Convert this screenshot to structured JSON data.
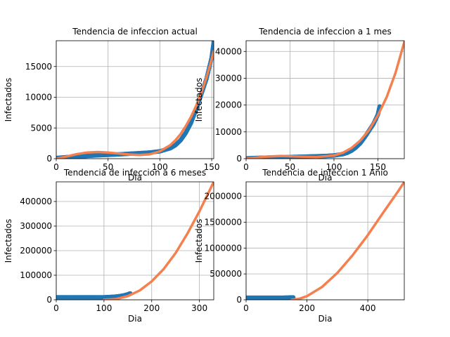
{
  "chart_data": [
    {
      "type": "scatter",
      "title": "Tendencia de infeccion actual",
      "xlabel": "Dia",
      "ylabel": "Infectados",
      "xlim": [
        0,
        152
      ],
      "ylim": [
        0,
        19200
      ],
      "xticks": [
        0,
        50,
        100,
        150
      ],
      "yticks": [
        0,
        5000,
        10000,
        15000
      ],
      "grid": true,
      "series": [
        {
          "kind": "scatter",
          "color": "#1f77b4",
          "x": [
            0,
            10,
            20,
            30,
            40,
            50,
            60,
            70,
            80,
            90,
            100,
            110,
            115,
            120,
            125,
            130,
            135,
            140,
            145,
            150,
            152
          ],
          "y": [
            100,
            250,
            350,
            450,
            550,
            620,
            700,
            800,
            900,
            1000,
            1200,
            1700,
            2200,
            3000,
            4200,
            5800,
            8000,
            10500,
            13000,
            16500,
            19000
          ]
        },
        {
          "kind": "line",
          "color": "#f5804f",
          "x": [
            0,
            10,
            20,
            30,
            40,
            50,
            60,
            70,
            80,
            90,
            100,
            110,
            115,
            120,
            125,
            130,
            135,
            140,
            145,
            150,
            152
          ],
          "y": [
            0,
            350,
            750,
            1000,
            1080,
            1000,
            850,
            680,
            600,
            700,
            1200,
            2200,
            3000,
            4000,
            5300,
            6800,
            8600,
            10700,
            13200,
            16200,
            17500
          ]
        }
      ]
    },
    {
      "type": "scatter",
      "title": "Tendencia de infeccion a 1 mes",
      "xlabel": "Dia",
      "ylabel": "Infectados",
      "xlim": [
        0,
        180
      ],
      "ylim": [
        0,
        44000
      ],
      "xticks": [
        0,
        50,
        100,
        150
      ],
      "yticks": [
        0,
        10000,
        20000,
        30000,
        40000
      ],
      "grid": true,
      "series": [
        {
          "kind": "scatter",
          "color": "#1f77b4",
          "x": [
            0,
            10,
            20,
            30,
            40,
            50,
            60,
            70,
            80,
            90,
            100,
            110,
            115,
            120,
            125,
            130,
            135,
            140,
            145,
            150,
            152
          ],
          "y": [
            100,
            250,
            350,
            450,
            550,
            620,
            700,
            800,
            900,
            1000,
            1200,
            1700,
            2200,
            3000,
            4200,
            5800,
            8000,
            10500,
            13000,
            16500,
            19500
          ]
        },
        {
          "kind": "line",
          "color": "#f5804f",
          "x": [
            0,
            20,
            40,
            60,
            80,
            100,
            110,
            120,
            130,
            140,
            150,
            160,
            170,
            180
          ],
          "y": [
            0,
            700,
            1000,
            800,
            600,
            1200,
            2200,
            4000,
            6800,
            10700,
            16200,
            23000,
            32000,
            43500
          ]
        }
      ]
    },
    {
      "type": "scatter",
      "title": "Tendencia de infeccion a 6 meses",
      "xlabel": "Dia",
      "ylabel": "Infectados",
      "xlim": [
        0,
        330
      ],
      "ylim": [
        0,
        480000
      ],
      "xticks": [
        0,
        100,
        200,
        300
      ],
      "yticks": [
        0,
        100000,
        200000,
        300000,
        400000
      ],
      "grid": true,
      "series": [
        {
          "kind": "scatter",
          "color": "#1f77b4",
          "x": [
            0,
            20,
            40,
            60,
            80,
            100,
            110,
            120,
            130,
            140,
            150,
            155
          ],
          "y": [
            10000,
            10000,
            10000,
            10000,
            10000,
            10000,
            11000,
            12000,
            14000,
            17000,
            22000,
            26000
          ]
        },
        {
          "kind": "line",
          "color": "#f5804f",
          "x": [
            100,
            125,
            150,
            175,
            200,
            225,
            250,
            275,
            300,
            330
          ],
          "y": [
            0,
            3000,
            15000,
            38000,
            75000,
            125000,
            190000,
            270000,
            360000,
            480000
          ]
        }
      ]
    },
    {
      "type": "scatter",
      "title": "Tendencia de infeccion 1 Anio",
      "xlabel": "Dia",
      "ylabel": "Infectados",
      "xlim": [
        0,
        520
      ],
      "ylim": [
        0,
        2280000
      ],
      "xticks": [
        0,
        200,
        400
      ],
      "yticks": [
        0,
        500000,
        1000000,
        1500000,
        2000000
      ],
      "grid": true,
      "series": [
        {
          "kind": "scatter",
          "color": "#1f77b4",
          "x": [
            0,
            20,
            40,
            60,
            80,
            100,
            120,
            140,
            150,
            155
          ],
          "y": [
            40000,
            40000,
            40000,
            40000,
            40000,
            40000,
            40000,
            42000,
            45000,
            45000
          ]
        },
        {
          "kind": "line",
          "color": "#f5804f",
          "x": [
            150,
            175,
            200,
            250,
            300,
            350,
            400,
            450,
            500,
            520
          ],
          "y": [
            0,
            20000,
            70000,
            250000,
            520000,
            860000,
            1250000,
            1680000,
            2100000,
            2280000
          ]
        }
      ]
    }
  ]
}
